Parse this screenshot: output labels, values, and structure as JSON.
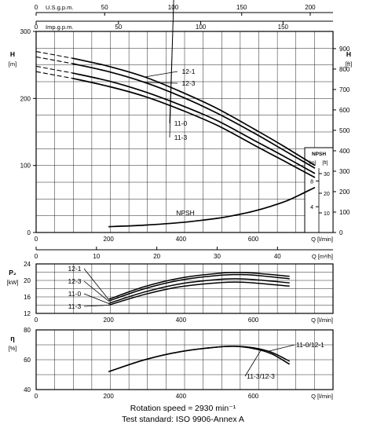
{
  "chart_data": [
    {
      "type": "line",
      "name_id": "head",
      "top_axes": [
        {
          "label": "U.S.g.p.m.",
          "ticks": [
            "0",
            "50",
            "100",
            "150",
            "200"
          ]
        },
        {
          "label": "Imp.g.p.m.",
          "ticks": [
            "0",
            "50",
            "100",
            "150"
          ]
        }
      ],
      "ylabel": "H",
      "yunit": "[m]",
      "yticks": [
        "0",
        "100",
        "200",
        "300"
      ],
      "ylim": [
        0,
        300
      ],
      "ylabel_right": "H",
      "yunit_right": "[ft]",
      "yticks_right": [
        "0",
        "100",
        "200",
        "300",
        "400",
        "500",
        "600",
        "700",
        "800",
        "900"
      ],
      "xlabel": "Q [l/min]",
      "xticks": [
        "0",
        "200",
        "400",
        "600"
      ],
      "xlim": [
        0,
        820
      ],
      "grid": true,
      "series": [
        {
          "name": "12-1",
          "x": [
            0,
            100,
            200,
            300,
            400,
            500,
            600,
            680,
            770
          ],
          "y": [
            270,
            260,
            248,
            232,
            210,
            185,
            155,
            130,
            100
          ]
        },
        {
          "name": "12-3",
          "x": [
            0,
            100,
            200,
            300,
            400,
            500,
            600,
            680,
            770
          ],
          "y": [
            262,
            252,
            240,
            224,
            203,
            178,
            149,
            124,
            96
          ]
        },
        {
          "name": "11-0",
          "x": [
            0,
            100,
            200,
            300,
            400,
            500,
            600,
            680,
            770
          ],
          "y": [
            248,
            238,
            226,
            210,
            190,
            167,
            138,
            115,
            88
          ]
        },
        {
          "name": "11-3",
          "x": [
            0,
            100,
            200,
            300,
            400,
            500,
            600,
            680,
            770
          ],
          "y": [
            240,
            230,
            218,
            203,
            183,
            160,
            131,
            108,
            82
          ]
        }
      ],
      "npsh": {
        "name": "NPSH",
        "title": "NPSH",
        "units": [
          "[m]",
          "[ft]"
        ],
        "ticks_m": [
          "4",
          "8"
        ],
        "ticks_ft": [
          "10",
          "20",
          "30"
        ],
        "x": [
          200,
          300,
          400,
          500,
          550,
          600,
          650,
          700,
          770
        ],
        "y": [
          0.9,
          1.15,
          1.55,
          2.2,
          2.7,
          3.3,
          4.1,
          5.1,
          7.0
        ]
      }
    },
    {
      "type": "line",
      "name_id": "power",
      "ylabel": "P₂",
      "yunit": "[kW]",
      "yticks": [
        "12",
        "16",
        "20",
        "24"
      ],
      "ylim": [
        12,
        24
      ],
      "xlabel": "Q [l/min]",
      "xticks": [
        "0",
        "200",
        "400",
        "600"
      ],
      "xlim": [
        0,
        820
      ],
      "top_axis": {
        "label": "Q [m³/h]",
        "ticks": [
          "0",
          "10",
          "20",
          "30",
          "40"
        ]
      },
      "grid": true,
      "series": [
        {
          "name": "12-1",
          "x": [
            200,
            300,
            400,
            500,
            550,
            600,
            700
          ],
          "y": [
            15.4,
            18.5,
            20.6,
            21.7,
            21.9,
            21.8,
            21.0
          ]
        },
        {
          "name": "12-3",
          "x": [
            200,
            300,
            400,
            500,
            550,
            600,
            700
          ],
          "y": [
            15.0,
            18.0,
            20.1,
            21.2,
            21.4,
            21.3,
            20.4
          ]
        },
        {
          "name": "11-0",
          "x": [
            200,
            300,
            400,
            500,
            550,
            600,
            700
          ],
          "y": [
            14.4,
            17.2,
            19.2,
            20.2,
            20.4,
            20.2,
            19.4
          ]
        },
        {
          "name": "11-3",
          "x": [
            200,
            300,
            400,
            500,
            550,
            600,
            700
          ],
          "y": [
            14.0,
            16.6,
            18.5,
            19.4,
            19.6,
            19.4,
            18.6
          ]
        }
      ]
    },
    {
      "type": "line",
      "name_id": "efficiency",
      "ylabel": "η",
      "yunit": "[%]",
      "yticks": [
        "40",
        "60",
        "80"
      ],
      "ylim": [
        40,
        80
      ],
      "xlabel": "Q [l/min]",
      "xticks": [
        "0",
        "200",
        "400",
        "600"
      ],
      "xlim": [
        0,
        820
      ],
      "grid": true,
      "series": [
        {
          "name": "11-0/12-1",
          "x": [
            200,
            300,
            400,
            500,
            550,
            600,
            650,
            700
          ],
          "y": [
            52,
            60,
            65.5,
            68.5,
            69,
            68,
            65,
            59
          ]
        },
        {
          "name": "11-3/12-3",
          "x": [
            200,
            300,
            400,
            500,
            550,
            600,
            650,
            700
          ],
          "y": [
            52,
            60,
            65.5,
            68.5,
            69,
            67.5,
            64,
            57
          ]
        }
      ]
    }
  ],
  "footer": {
    "line1": "Rotation speed ≈ 2930 min⁻¹",
    "line2": "Test standard: ISO 9906-Annex A"
  }
}
